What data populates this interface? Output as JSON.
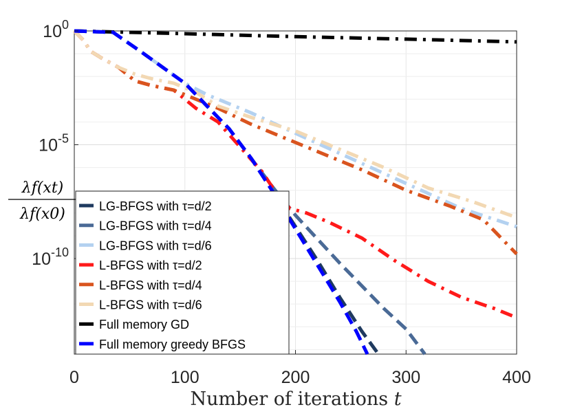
{
  "chart_data": {
    "type": "line",
    "title": "",
    "xlabel_text": "Number of iterations ",
    "xlabel_var": "t",
    "ylabel_num": "λf(xt)",
    "ylabel_den": "λf(x0)",
    "xlim": [
      0,
      400
    ],
    "ylim_log10": [
      -14.2,
      0
    ],
    "grid": true,
    "legend_position": "bottom-left",
    "x_ticks": [
      {
        "value": 0,
        "label": "0"
      },
      {
        "value": 100,
        "label": "100"
      },
      {
        "value": 200,
        "label": "200"
      },
      {
        "value": 300,
        "label": "300"
      },
      {
        "value": 400,
        "label": "400"
      }
    ],
    "y_ticks": [
      {
        "log10": 0,
        "base": "10",
        "exp": "0"
      },
      {
        "log10": -5,
        "base": "10",
        "exp": "-5"
      },
      {
        "log10": -10,
        "base": "10",
        "exp": "-10"
      }
    ],
    "series": [
      {
        "name": "LG-BFGS with τ=d/2",
        "color": "#1f3a5f",
        "dash": "18,9",
        "width": 5,
        "points": [
          [
            0,
            0
          ],
          [
            35,
            -0.06
          ],
          [
            45,
            -0.4
          ],
          [
            60,
            -0.9
          ],
          [
            80,
            -1.6
          ],
          [
            100,
            -2.3
          ],
          [
            120,
            -3.3
          ],
          [
            140,
            -4.3
          ],
          [
            160,
            -5.6
          ],
          [
            180,
            -7.1
          ],
          [
            200,
            -8.6
          ],
          [
            220,
            -10.1
          ],
          [
            240,
            -11.7
          ],
          [
            260,
            -13.2
          ],
          [
            275,
            -14.2
          ]
        ]
      },
      {
        "name": "LG-BFGS with τ=d/4",
        "color": "#4a6a96",
        "dash": "18,9",
        "width": 5,
        "points": [
          [
            0,
            0
          ],
          [
            35,
            -0.06
          ],
          [
            45,
            -0.4
          ],
          [
            60,
            -0.9
          ],
          [
            80,
            -1.6
          ],
          [
            100,
            -2.3
          ],
          [
            120,
            -3.3
          ],
          [
            140,
            -4.3
          ],
          [
            160,
            -5.6
          ],
          [
            180,
            -6.9
          ],
          [
            200,
            -8.1
          ],
          [
            240,
            -10.2
          ],
          [
            280,
            -12.2
          ],
          [
            300,
            -13.1
          ],
          [
            317,
            -14.2
          ]
        ]
      },
      {
        "name": "LG-BFGS with τ=d/6",
        "color": "#b3d1f0",
        "dash": "18,9,4,9",
        "width": 5,
        "points": [
          [
            0,
            0
          ],
          [
            35,
            -0.06
          ],
          [
            45,
            -0.4
          ],
          [
            60,
            -0.9
          ],
          [
            80,
            -1.6
          ],
          [
            100,
            -2.3
          ],
          [
            120,
            -2.8
          ],
          [
            160,
            -3.6
          ],
          [
            200,
            -4.5
          ],
          [
            250,
            -5.6
          ],
          [
            300,
            -6.7
          ],
          [
            350,
            -7.8
          ],
          [
            400,
            -8.6
          ]
        ]
      },
      {
        "name": "L-BFGS with τ=d/2",
        "color": "#ff1a1a",
        "dash": "18,9,4,9",
        "width": 5,
        "points": [
          [
            0,
            0
          ],
          [
            8,
            -0.4
          ],
          [
            15,
            -0.9
          ],
          [
            25,
            -1.2
          ],
          [
            40,
            -1.6
          ],
          [
            55,
            -2.2
          ],
          [
            70,
            -2.4
          ],
          [
            90,
            -2.6
          ],
          [
            110,
            -3.4
          ],
          [
            130,
            -4.0
          ],
          [
            150,
            -5.1
          ],
          [
            170,
            -6.2
          ],
          [
            185,
            -7.3
          ],
          [
            195,
            -7.8
          ],
          [
            210,
            -8.0
          ],
          [
            230,
            -8.4
          ],
          [
            260,
            -9.1
          ],
          [
            290,
            -10.1
          ],
          [
            320,
            -11.0
          ],
          [
            350,
            -11.7
          ],
          [
            380,
            -12.2
          ],
          [
            400,
            -12.6
          ]
        ]
      },
      {
        "name": "L-BFGS with τ=d/4",
        "color": "#d9541e",
        "dash": "18,9,4,9",
        "width": 5,
        "points": [
          [
            0,
            0
          ],
          [
            8,
            -0.4
          ],
          [
            15,
            -0.9
          ],
          [
            25,
            -1.2
          ],
          [
            40,
            -1.6
          ],
          [
            55,
            -2.2
          ],
          [
            70,
            -2.4
          ],
          [
            90,
            -2.6
          ],
          [
            110,
            -3.0
          ],
          [
            130,
            -3.4
          ],
          [
            160,
            -4.1
          ],
          [
            200,
            -4.9
          ],
          [
            230,
            -5.5
          ],
          [
            260,
            -6.1
          ],
          [
            300,
            -7.0
          ],
          [
            340,
            -7.7
          ],
          [
            370,
            -8.3
          ],
          [
            400,
            -9.8
          ]
        ]
      },
      {
        "name": "L-BFGS with τ=d/6",
        "color": "#f2d8b3",
        "dash": "18,9,4,9",
        "width": 5,
        "points": [
          [
            0,
            0
          ],
          [
            8,
            -0.4
          ],
          [
            15,
            -0.9
          ],
          [
            25,
            -1.2
          ],
          [
            40,
            -1.6
          ],
          [
            55,
            -1.9
          ],
          [
            70,
            -2.1
          ],
          [
            90,
            -2.3
          ],
          [
            110,
            -2.7
          ],
          [
            130,
            -3.3
          ],
          [
            160,
            -3.8
          ],
          [
            200,
            -4.4
          ],
          [
            240,
            -5.2
          ],
          [
            280,
            -6.0
          ],
          [
            320,
            -6.9
          ],
          [
            360,
            -7.5
          ],
          [
            400,
            -8.2
          ]
        ]
      },
      {
        "name": "Full memory GD",
        "color": "#000000",
        "dash": "18,9,4,9",
        "width": 5,
        "points": [
          [
            0,
            0
          ],
          [
            100,
            -0.12
          ],
          [
            200,
            -0.25
          ],
          [
            300,
            -0.36
          ],
          [
            400,
            -0.48
          ]
        ]
      },
      {
        "name": "Full memory greedy BFGS",
        "color": "#0000ff",
        "dash": "18,9",
        "width": 5,
        "points": [
          [
            0,
            0
          ],
          [
            35,
            -0.06
          ],
          [
            45,
            -0.4
          ],
          [
            60,
            -0.9
          ],
          [
            80,
            -1.6
          ],
          [
            100,
            -2.3
          ],
          [
            120,
            -3.3
          ],
          [
            140,
            -4.3
          ],
          [
            160,
            -5.6
          ],
          [
            180,
            -7.1
          ],
          [
            200,
            -8.7
          ],
          [
            220,
            -10.3
          ],
          [
            240,
            -11.9
          ],
          [
            255,
            -13.2
          ],
          [
            265,
            -14.2
          ]
        ]
      }
    ]
  }
}
